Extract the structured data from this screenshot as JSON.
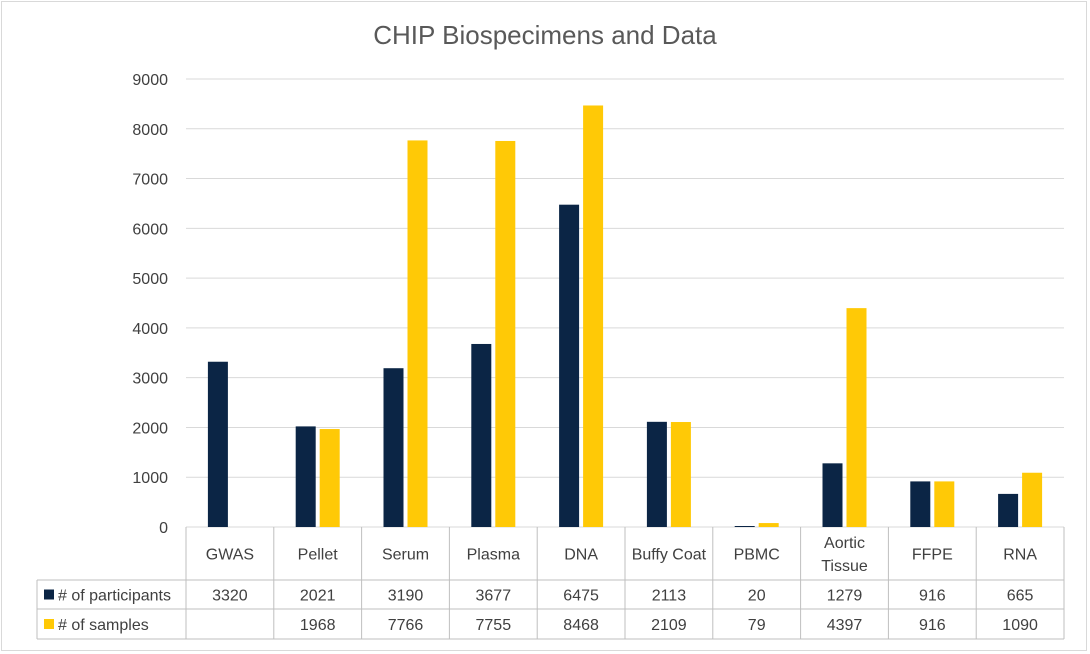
{
  "chart_data": {
    "type": "bar",
    "title": "CHIP Biospecimens and Data",
    "categories": [
      "GWAS",
      "Pellet",
      "Serum",
      "Plasma",
      "DNA",
      "Buffy Coat",
      "PBMC",
      "Aortic Tissue",
      "FFPE",
      "RNA"
    ],
    "category_lines": [
      [
        "GWAS"
      ],
      [
        "Pellet"
      ],
      [
        "Serum"
      ],
      [
        "Plasma"
      ],
      [
        "DNA"
      ],
      [
        "Buffy Coat"
      ],
      [
        "PBMC"
      ],
      [
        "Aortic",
        "Tissue"
      ],
      [
        "FFPE"
      ],
      [
        "RNA"
      ]
    ],
    "series": [
      {
        "name": "# of participants",
        "color": "#0b2545",
        "values": [
          3320,
          2021,
          3190,
          3677,
          6475,
          2113,
          20,
          1279,
          916,
          665
        ],
        "labels": [
          "3320",
          "2021",
          "3190",
          "3677",
          "6475",
          "2113",
          "20",
          "1279",
          "916",
          "665"
        ]
      },
      {
        "name": "# of samples",
        "color": "#ffc906",
        "values": [
          null,
          1968,
          7766,
          7755,
          8468,
          2109,
          79,
          4397,
          916,
          1090
        ],
        "labels": [
          "",
          "1968",
          "7766",
          "7755",
          "8468",
          "2109",
          "79",
          "4397",
          "916",
          "1090"
        ]
      }
    ],
    "ylim": [
      0,
      9000
    ],
    "yticks": [
      0,
      1000,
      2000,
      3000,
      4000,
      5000,
      6000,
      7000,
      8000,
      9000
    ],
    "ytick_labels": [
      "0",
      "1000",
      "2000",
      "3000",
      "4000",
      "5000",
      "6000",
      "7000",
      "8000",
      "9000"
    ],
    "grid": true,
    "legend": "data-table-bottom",
    "xlabel": "",
    "ylabel": ""
  }
}
